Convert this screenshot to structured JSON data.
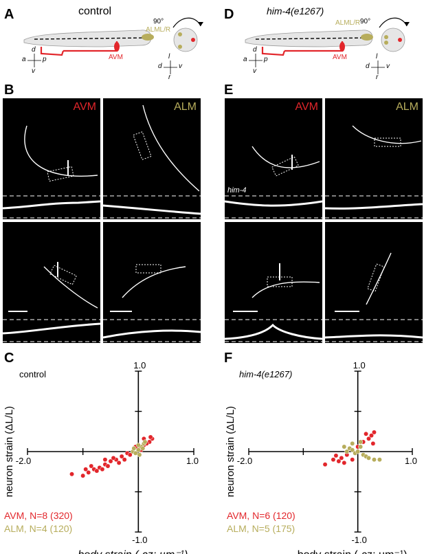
{
  "panels": {
    "A": {
      "letter": "A",
      "title": "control",
      "angle": "90°",
      "neuron_alm": "ALML/R",
      "neuron_avm": "AVM",
      "axes_side": {
        "top": "d",
        "left": "a",
        "right": "p",
        "bottom": "v"
      },
      "axes_cross": {
        "top": "l",
        "left": "d",
        "right": "v",
        "bottom": "r"
      }
    },
    "D": {
      "letter": "D",
      "title": "him-4(e1267)",
      "angle": "90°",
      "neuron_alm": "ALML/R",
      "neuron_avm": "AVM",
      "axes_side": {
        "top": "d",
        "left": "a",
        "right": "p",
        "bottom": "v"
      },
      "axes_cross": {
        "top": "l",
        "left": "d",
        "right": "v",
        "bottom": "r"
      }
    },
    "B": {
      "letter": "B",
      "label_avm": "AVM",
      "label_alm": "ALM"
    },
    "E": {
      "letter": "E",
      "label_avm": "AVM",
      "label_alm": "ALM",
      "inset_label": "him-4"
    },
    "C": {
      "letter": "C",
      "condition": "control",
      "legend_avm": "AVM, N=8 (320)",
      "legend_alm": "ALM, N=4 (120)"
    },
    "F": {
      "letter": "F",
      "condition": "him-4(e1267)",
      "legend_avm": "AVM, N=6 (120)",
      "legend_alm": "ALM, N=5 (175)"
    }
  },
  "colors": {
    "avm": "#e2262b",
    "alm": "#b7ad5c",
    "body": "#e6e6e6"
  },
  "chart_data": [
    {
      "type": "scatter",
      "title": "control",
      "xlabel": "body strain (-cz; µm⁻¹)",
      "ylabel": "neuron strain (ΔL/L)",
      "xlim": [
        -2.0,
        1.0
      ],
      "ylim": [
        -1.0,
        1.0
      ],
      "tick_labels": {
        "x_min": "-2.0",
        "x_max": "1.0",
        "y_min": "-1.0",
        "y_max": "1.0"
      },
      "series": [
        {
          "name": "AVM, N=8 (320)",
          "color": "#e2262b",
          "points": [
            [
              -1.0,
              -0.3
            ],
            [
              -0.9,
              -0.26
            ],
            [
              -0.8,
              -0.22
            ],
            [
              -0.7,
              -0.2
            ],
            [
              -0.6,
              -0.16
            ],
            [
              -0.5,
              -0.12
            ],
            [
              -0.4,
              -0.1
            ],
            [
              -0.3,
              -0.06
            ],
            [
              -0.2,
              -0.02
            ],
            [
              -0.1,
              0.0
            ],
            [
              0.0,
              0.04
            ],
            [
              0.1,
              0.08
            ],
            [
              0.2,
              0.12
            ],
            [
              0.25,
              0.16
            ],
            [
              -0.85,
              -0.18
            ],
            [
              -0.65,
              -0.22
            ],
            [
              -0.45,
              -0.08
            ],
            [
              -0.35,
              -0.14
            ],
            [
              -0.15,
              -0.04
            ],
            [
              0.05,
              0.02
            ],
            [
              0.15,
              0.1
            ],
            [
              -0.55,
              -0.18
            ],
            [
              -0.75,
              -0.24
            ],
            [
              -0.25,
              -0.1
            ],
            [
              0.22,
              0.18
            ],
            [
              -0.95,
              -0.22
            ],
            [
              -1.2,
              -0.28
            ],
            [
              -0.6,
              -0.1
            ],
            [
              0.1,
              0.16
            ],
            [
              -0.05,
              0.06
            ]
          ]
        },
        {
          "name": "ALM, N=4 (120)",
          "color": "#b7ad5c",
          "points": [
            [
              -0.1,
              0.0
            ],
            [
              0.0,
              0.02
            ],
            [
              0.05,
              0.06
            ],
            [
              0.1,
              0.1
            ],
            [
              -0.05,
              -0.02
            ],
            [
              0.0,
              0.08
            ],
            [
              0.08,
              0.04
            ],
            [
              -0.08,
              0.04
            ],
            [
              0.12,
              0.12
            ],
            [
              0.02,
              -0.04
            ]
          ]
        }
      ]
    },
    {
      "type": "scatter",
      "title": "him-4(e1267)",
      "xlabel": "body strain (-cz; µm⁻¹)",
      "ylabel": "neuron strain (ΔL/L)",
      "xlim": [
        -2.0,
        1.0
      ],
      "ylim": [
        -1.0,
        1.0
      ],
      "tick_labels": {
        "x_min": "-2.0",
        "x_max": "1.0",
        "y_min": "-1.0",
        "y_max": "1.0"
      },
      "series": [
        {
          "name": "AVM, N=6 (120)",
          "color": "#e2262b",
          "points": [
            [
              -0.45,
              -0.1
            ],
            [
              -0.4,
              -0.05
            ],
            [
              -0.35,
              -0.12
            ],
            [
              -0.3,
              -0.08
            ],
            [
              -0.25,
              -0.14
            ],
            [
              -0.2,
              -0.04
            ],
            [
              -0.1,
              -0.1
            ],
            [
              0.0,
              0.06
            ],
            [
              0.1,
              0.12
            ],
            [
              0.2,
              0.16
            ],
            [
              0.25,
              0.2
            ],
            [
              0.3,
              0.24
            ],
            [
              -0.6,
              -0.16
            ],
            [
              0.15,
              0.22
            ],
            [
              0.28,
              0.1
            ]
          ]
        },
        {
          "name": "ALM, N=5 (175)",
          "color": "#b7ad5c",
          "points": [
            [
              -0.2,
              0.0
            ],
            [
              -0.15,
              0.04
            ],
            [
              -0.1,
              0.02
            ],
            [
              -0.05,
              -0.02
            ],
            [
              0.0,
              0.0
            ],
            [
              0.05,
              0.06
            ],
            [
              0.1,
              -0.04
            ],
            [
              0.15,
              -0.06
            ],
            [
              0.2,
              -0.08
            ],
            [
              -0.25,
              0.06
            ],
            [
              0.3,
              -0.1
            ],
            [
              -0.1,
              0.1
            ],
            [
              0.05,
              0.12
            ],
            [
              0.4,
              -0.1
            ]
          ]
        }
      ]
    }
  ]
}
